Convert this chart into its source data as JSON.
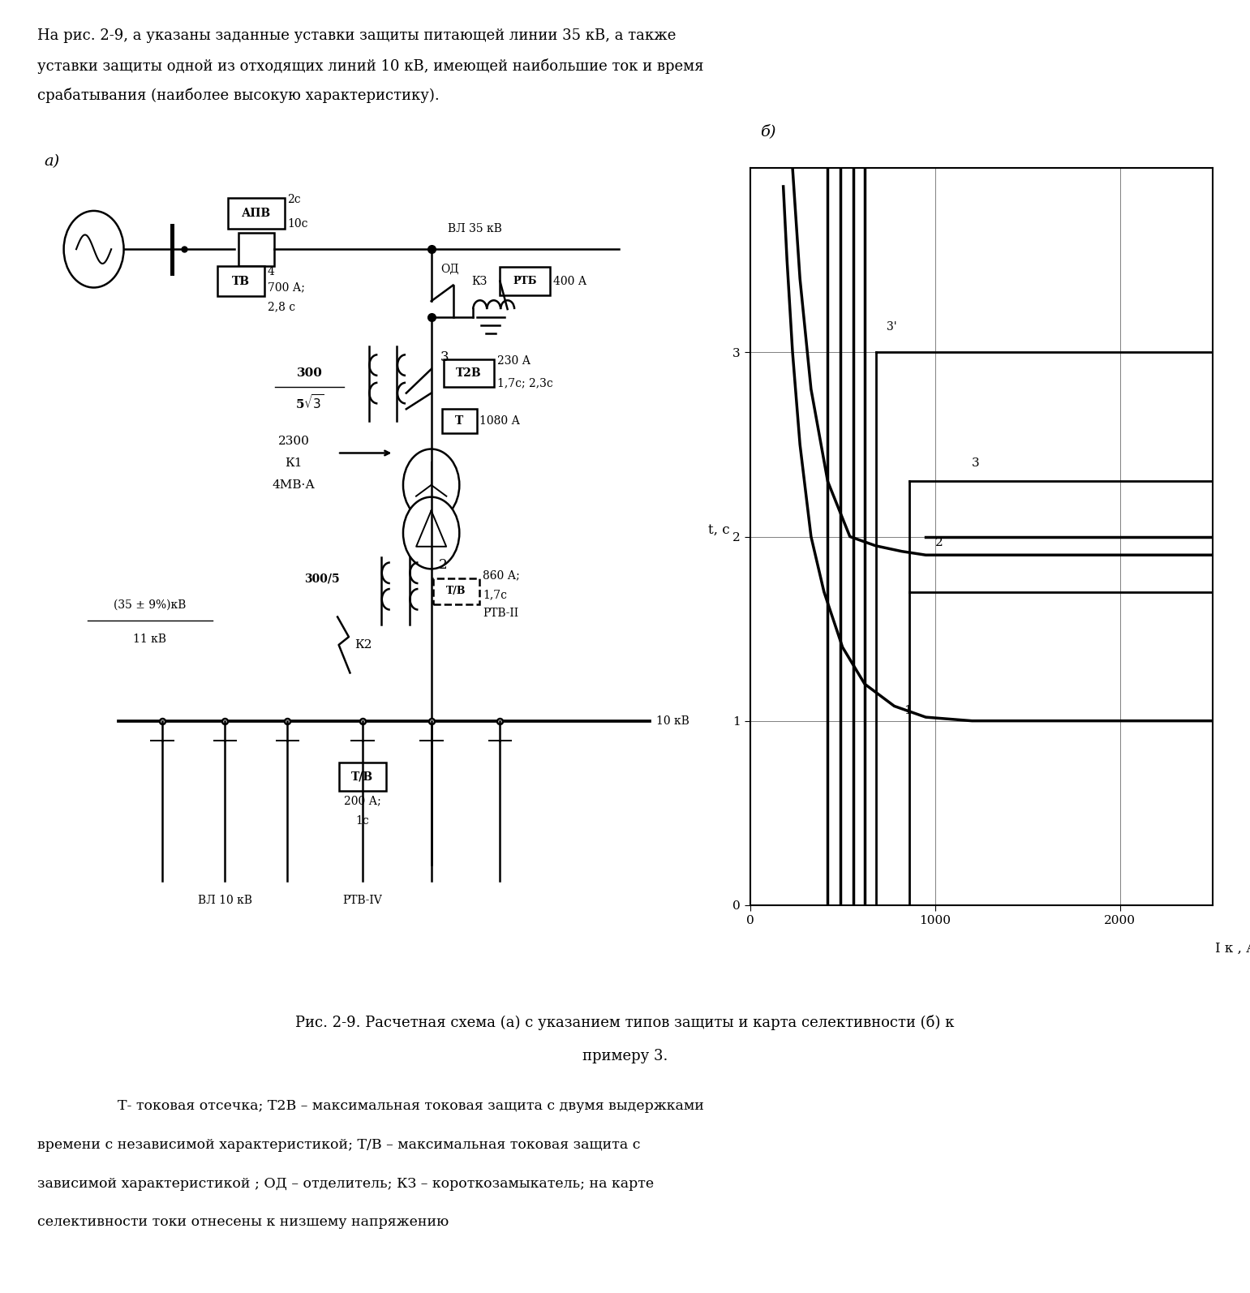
{
  "intro_lines": [
    "На рис. 2-9, а указаны заданные уставки защиты питающей линии 35 кВ, а также",
    "уставки защиты одной из отходящих линий 10 кВ, имеющей наибольшие ток и время",
    "срабатывания (наиболее высокую характеристику)."
  ],
  "caption_lines": [
    "Рис. 2-9. Расчетная схема (а) с указанием типов защиты и карта селективности (б) к",
    "примеру 3."
  ],
  "note_lines": [
    "Т- токовая отсечка; Т2В – максимальная токовая защита с двумя выдержками",
    "времени с независимой характеристикой; Т/В – максимальная токовая защита с",
    "зависимой характеристикой ; ОД – отделитель; КЗ – короткозамыкатель; на карте",
    "селективности токи отнесены к низшему напряжению"
  ],
  "bg_color": "#ffffff"
}
